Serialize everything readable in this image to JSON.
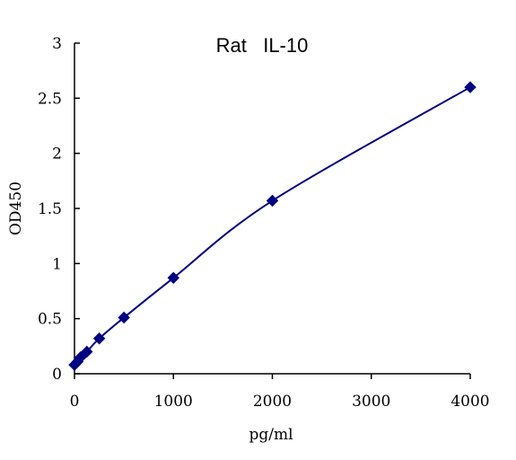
{
  "chart_data": {
    "type": "scatter",
    "title": "Rat   IL-10",
    "xlabel": "pg/ml",
    "ylabel": "OD450",
    "xlim": [
      0,
      4000
    ],
    "ylim": [
      0,
      3
    ],
    "x_ticks": [
      "0",
      "1000",
      "2000",
      "3000",
      "4000"
    ],
    "y_ticks": [
      "0",
      "0.5",
      "1",
      "1.5",
      "2",
      "2.5",
      "3"
    ],
    "x_tick_values": [
      0,
      1000,
      2000,
      3000,
      4000
    ],
    "y_tick_values": [
      0,
      0.5,
      1,
      1.5,
      2,
      2.5,
      3
    ],
    "series": [
      {
        "x": [
          0,
          31.25,
          62.5,
          125,
          250,
          500,
          1000,
          2000,
          4000
        ],
        "y": [
          0.08,
          0.11,
          0.15,
          0.2,
          0.32,
          0.51,
          0.87,
          1.57,
          2.6
        ],
        "color": "#000080",
        "marker": "diamond",
        "fit": "smooth-curve"
      }
    ],
    "grid": false,
    "legend": "none"
  }
}
